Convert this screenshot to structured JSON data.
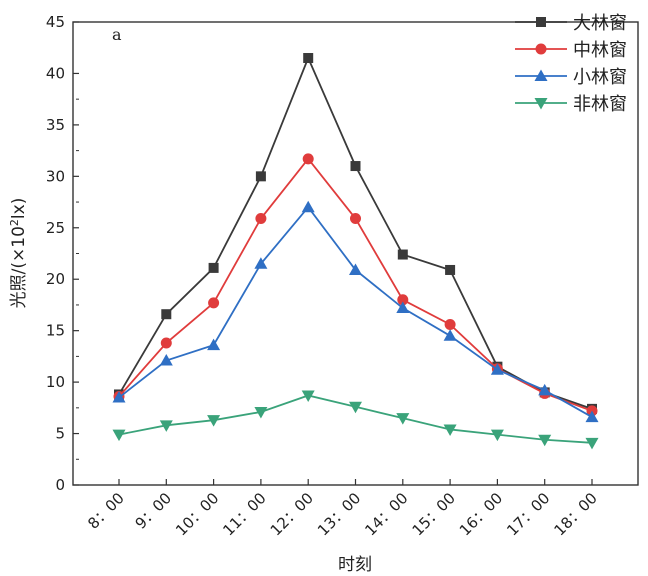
{
  "chart_data": {
    "type": "line",
    "panel_label": "a",
    "title": "",
    "xlabel": "时刻",
    "ylabel_main": "光照/(×10",
    "ylabel_sup": "2",
    "ylabel_end": "lx)",
    "categories": [
      "8：00",
      "9：00",
      "10：00",
      "11：00",
      "12：00",
      "13：00",
      "14：00",
      "15：00",
      "16：00",
      "17：00",
      "18：00"
    ],
    "ylim": [
      0,
      45
    ],
    "yticks": [
      0,
      5,
      10,
      15,
      20,
      25,
      30,
      35,
      40,
      45
    ],
    "legend_position": "top-right",
    "series": [
      {
        "name": "大林窗",
        "color": "#3a3a3a",
        "marker": "square",
        "values": [
          8.8,
          16.6,
          21.1,
          30.0,
          41.5,
          31.0,
          22.4,
          20.9,
          11.5,
          9.0,
          7.4
        ]
      },
      {
        "name": "中林窗",
        "color": "#e03c3c",
        "marker": "circle",
        "values": [
          8.6,
          13.8,
          17.7,
          25.9,
          31.7,
          25.9,
          18.0,
          15.6,
          11.3,
          8.9,
          7.2
        ]
      },
      {
        "name": "小林窗",
        "color": "#2f6fc4",
        "marker": "triangle-up",
        "values": [
          8.5,
          12.1,
          13.6,
          21.5,
          27.0,
          20.9,
          17.2,
          14.5,
          11.2,
          9.2,
          6.6
        ]
      },
      {
        "name": "非林窗",
        "color": "#3aa37a",
        "marker": "triangle-down",
        "values": [
          4.9,
          5.8,
          6.3,
          7.1,
          8.7,
          7.6,
          6.5,
          5.4,
          4.9,
          4.4,
          4.1
        ]
      }
    ]
  }
}
